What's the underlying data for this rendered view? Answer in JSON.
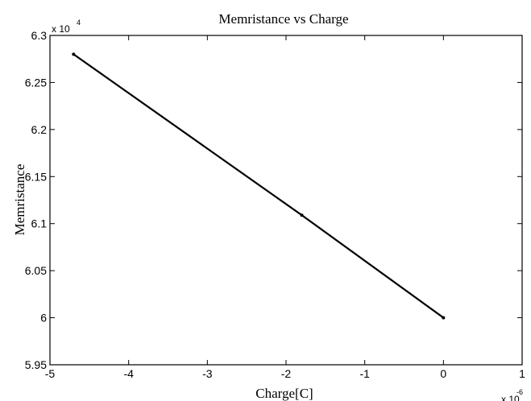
{
  "chart_data": {
    "type": "line",
    "title": "Memristance vs Charge",
    "xlabel": "Charge[C]",
    "ylabel": "Memristance",
    "x_multiplier": {
      "base": "x 10",
      "exponent": "-6"
    },
    "y_multiplier": {
      "base": "x 10",
      "exponent": "4"
    },
    "xlim": [
      -5,
      1
    ],
    "ylim": [
      5.95,
      6.3
    ],
    "x_ticks": [
      -5,
      -4,
      -3,
      -2,
      -1,
      0,
      1
    ],
    "x_tick_labels": [
      "-5",
      "-4",
      "-3",
      "-2",
      "-1",
      "0",
      "1"
    ],
    "y_ticks": [
      5.95,
      6,
      6.05,
      6.1,
      6.15,
      6.2,
      6.25,
      6.3
    ],
    "y_tick_labels": [
      "5.95",
      "6",
      "6.05",
      "6.1",
      "6.15",
      "6.2",
      "6.25",
      "6.3"
    ],
    "grid": false,
    "series": [
      {
        "x": [
          -4.7,
          -1.8,
          0
        ],
        "y": [
          6.28,
          6.109,
          6.0
        ],
        "color": "#000000"
      }
    ]
  }
}
